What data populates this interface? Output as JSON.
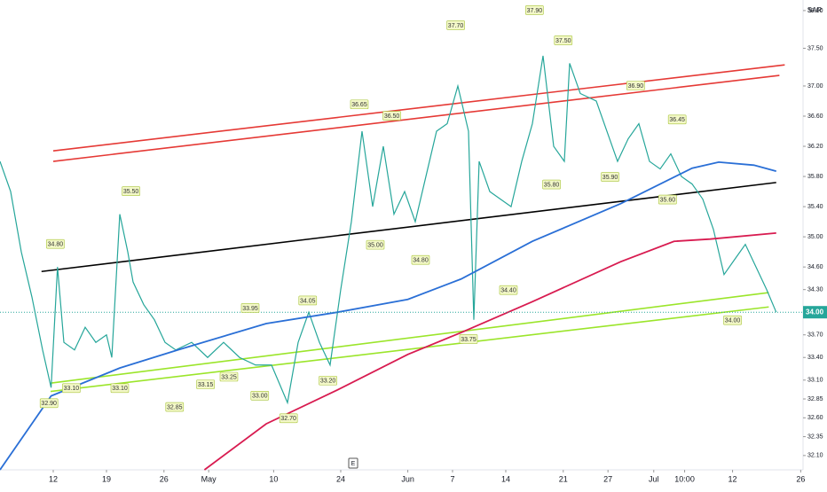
{
  "chart_data": {
    "type": "line",
    "currency": "SAR",
    "event_marker": "E",
    "xlim": [
      -5,
      70.42
    ],
    "ylim": [
      31.91,
      38.14
    ],
    "xticks": [
      {
        "value": 0,
        "label": "12"
      },
      {
        "value": 5,
        "label": "19"
      },
      {
        "value": 10.4,
        "label": "26"
      },
      {
        "value": 14.6,
        "label": "May"
      },
      {
        "value": 20.7,
        "label": "10"
      },
      {
        "value": 27,
        "label": "24"
      },
      {
        "value": 33.3,
        "label": "Jun"
      },
      {
        "value": 37.5,
        "label": "7"
      },
      {
        "value": 42.5,
        "label": "14"
      },
      {
        "value": 47.9,
        "label": "21"
      },
      {
        "value": 52.1,
        "label": "27"
      },
      {
        "value": 56.4,
        "label": "Jul"
      },
      {
        "value": 59.3,
        "label": "10:00"
      },
      {
        "value": 63.8,
        "label": "12"
      },
      {
        "value": 70.2,
        "label": "26"
      }
    ],
    "yticks": [
      {
        "value": 32.1,
        "label": "32.10"
      },
      32.35,
      {
        "value": 32.6,
        "label": "32.60"
      },
      32.85,
      {
        "value": 33.1,
        "label": "33.10"
      },
      {
        "value": 33.4,
        "label": "33.40"
      },
      {
        "value": 33.7,
        "label": "33.70"
      },
      {
        "value": 34.3,
        "label": "34.30"
      },
      {
        "value": 34.6,
        "label": "34.60"
      },
      {
        "value": 35,
        "label": "35.00"
      },
      {
        "value": 35.4,
        "label": "35.40"
      },
      {
        "value": 35.8,
        "label": "35.80"
      },
      {
        "value": 36.2,
        "label": "36.20"
      },
      {
        "value": 36.6,
        "label": "36.60"
      },
      {
        "value": 37,
        "label": "37.00"
      },
      {
        "value": 37.5,
        "label": "37.50"
      },
      {
        "value": 38,
        "label": "38.00"
      }
    ],
    "last_price": {
      "value": 34,
      "label": "34.00",
      "color": "#26a69a"
    },
    "series": [
      {
        "color": "#26a69a",
        "width": 1.2,
        "x": [
          -5,
          -4,
          -3,
          -2,
          -1,
          -0.2,
          0.4,
          1,
          2,
          3,
          4,
          5,
          5.5,
          6.25,
          7,
          7.5,
          8.5,
          9.5,
          10.5,
          11.5,
          13,
          14.5,
          16,
          17.5,
          19,
          20.5,
          22,
          23,
          24,
          25,
          26,
          27,
          28,
          29,
          30,
          31,
          32,
          33,
          34,
          35,
          36,
          37,
          38,
          39,
          39.5,
          40,
          41,
          42,
          43,
          44,
          45,
          46,
          47,
          48,
          48.5,
          49.5,
          51,
          52,
          53,
          54,
          55,
          56,
          57,
          58,
          59,
          60,
          61,
          62,
          63,
          64,
          65,
          66,
          67,
          67.9
        ],
        "values": [
          36.0,
          35.6,
          34.8,
          34.2,
          33.5,
          33.0,
          34.6,
          33.6,
          33.5,
          33.8,
          33.6,
          33.7,
          33.4,
          35.3,
          34.8,
          34.4,
          34.1,
          33.9,
          33.6,
          33.5,
          33.6,
          33.4,
          33.6,
          33.4,
          33.3,
          33.3,
          32.8,
          33.6,
          34.0,
          33.6,
          33.3,
          34.3,
          35.2,
          36.4,
          35.4,
          36.2,
          35.3,
          35.6,
          35.2,
          35.8,
          36.4,
          36.5,
          37.0,
          36.4,
          33.9,
          36.0,
          35.6,
          35.5,
          35.4,
          36.0,
          36.5,
          37.4,
          36.2,
          36.0,
          37.3,
          36.9,
          36.8,
          36.4,
          36.0,
          36.3,
          36.5,
          36.0,
          35.9,
          36.1,
          35.8,
          35.7,
          35.5,
          35.1,
          34.5,
          34.7,
          34.9,
          34.6,
          34.3,
          34.0
        ]
      },
      {
        "color": "#2a6fd6",
        "width": 1.8,
        "x": [
          -5,
          -0.2,
          6.25,
          11.7,
          20,
          26.7,
          33.3,
          38.3,
          45,
          53.3,
          60,
          62.5,
          65.8,
          67.9
        ],
        "values": [
          31.91,
          32.89,
          33.26,
          33.5,
          33.85,
          34.0,
          34.17,
          34.44,
          34.94,
          35.44,
          35.91,
          35.99,
          35.95,
          35.87
        ]
      },
      {
        "color": "#d81b50",
        "width": 1.8,
        "x": [
          14.2,
          20,
          26.7,
          33.3,
          38.3,
          45,
          53.3,
          58.3,
          61.7,
          67.9
        ],
        "values": [
          31.91,
          32.52,
          32.97,
          33.44,
          33.73,
          34.14,
          34.67,
          34.94,
          34.97,
          35.05
        ]
      }
    ],
    "trendlines": [
      {
        "color": "#e53935",
        "x": [
          0,
          68.7
        ],
        "values": [
          36.14,
          37.28
        ]
      },
      {
        "color": "#e53935",
        "x": [
          0,
          68.2
        ],
        "values": [
          36.0,
          37.14
        ]
      },
      {
        "color": "#000000",
        "x": [
          -1.1,
          67.9
        ],
        "values": [
          34.54,
          35.72
        ]
      },
      {
        "color": "#9be52a",
        "x": [
          -0.25,
          67.2
        ],
        "values": [
          33.06,
          34.26
        ]
      },
      {
        "color": "#9be52a",
        "x": [
          -0.25,
          67.2
        ],
        "values": [
          32.95,
          34.07
        ]
      }
    ],
    "high_labels": [
      {
        "x": 0.2,
        "value": 34.8,
        "label": "34.80"
      },
      {
        "x": 7.3,
        "value": 35.5,
        "label": "35.50"
      },
      {
        "x": 18.5,
        "value": 33.95,
        "label": "33.95"
      },
      {
        "x": 23.9,
        "value": 34.05,
        "label": "34.05"
      },
      {
        "x": 28.75,
        "value": 36.65,
        "label": "36.65"
      },
      {
        "x": 31.8,
        "value": 36.5,
        "label": "36.50"
      },
      {
        "x": 37.8,
        "value": 37.7,
        "label": "37.70"
      },
      {
        "x": 45.2,
        "value": 37.9,
        "label": "37.90"
      },
      {
        "x": 47.9,
        "value": 37.5,
        "label": "37.50"
      },
      {
        "x": 54.7,
        "value": 36.9,
        "label": "36.90"
      },
      {
        "x": 58.6,
        "value": 36.45,
        "label": "36.45"
      }
    ],
    "low_labels": [
      {
        "x": -0.4,
        "value": 32.9,
        "label": "32.90"
      },
      {
        "x": 1.7,
        "value": 33.1,
        "label": "33.10"
      },
      {
        "x": 6.25,
        "value": 33.1,
        "label": "33.10"
      },
      {
        "x": 11.4,
        "value": 32.85,
        "label": "32.85"
      },
      {
        "x": 14.3,
        "value": 33.15,
        "label": "33.15"
      },
      {
        "x": 16.5,
        "value": 33.25,
        "label": "33.25"
      },
      {
        "x": 19.4,
        "value": 33.0,
        "label": "33.00"
      },
      {
        "x": 22.1,
        "value": 32.7,
        "label": "32.70"
      },
      {
        "x": 25.8,
        "value": 33.2,
        "label": "33.20"
      },
      {
        "x": 30.25,
        "value": 35.0,
        "label": "35.00"
      },
      {
        "x": 34.5,
        "value": 34.8,
        "label": "34.80"
      },
      {
        "x": 39,
        "value": 33.75,
        "label": "33.75"
      },
      {
        "x": 42.75,
        "value": 34.4,
        "label": "34.40"
      },
      {
        "x": 46.8,
        "value": 35.8,
        "label": "35.80"
      },
      {
        "x": 52.3,
        "value": 35.9,
        "label": "35.90"
      },
      {
        "x": 57.7,
        "value": 35.6,
        "label": "35.60"
      },
      {
        "x": 63.8,
        "value": 34.0,
        "label": "34.00"
      }
    ]
  }
}
